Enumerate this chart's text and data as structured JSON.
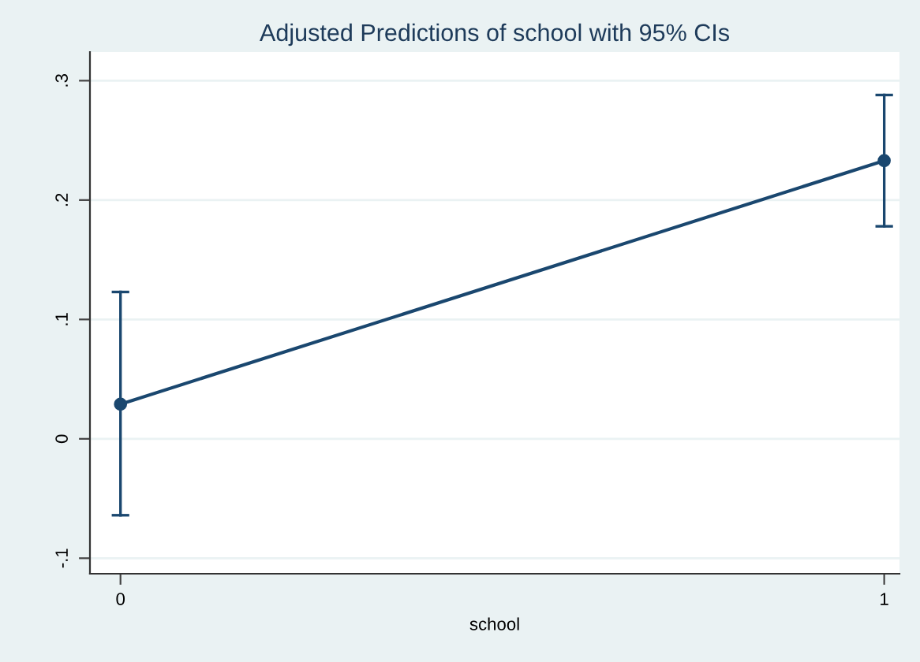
{
  "chart_data": {
    "type": "line",
    "title": "Adjusted Predictions of school with 95% CIs",
    "xlabel": "school",
    "x": [
      0,
      1
    ],
    "series": [
      {
        "color": "#1a476f",
        "values": [
          0.029,
          0.233
        ],
        "errors": [
          [
            -0.064,
            0.123
          ],
          [
            0.178,
            0.288
          ]
        ]
      }
    ],
    "marker": "circle",
    "line_style": "solid",
    "grid": "y",
    "xlim": [
      -0.04,
      1.02
    ],
    "xticks": [
      0,
      1
    ],
    "ylim": [
      -0.113,
      0.324
    ],
    "yticks": [
      {
        "value": -0.1,
        "label": "-.1"
      },
      0,
      {
        "value": 0.1,
        "label": ".1"
      },
      {
        "value": 0.2,
        "label": ".2"
      },
      {
        "value": 0.3,
        "label": ".3"
      }
    ]
  }
}
